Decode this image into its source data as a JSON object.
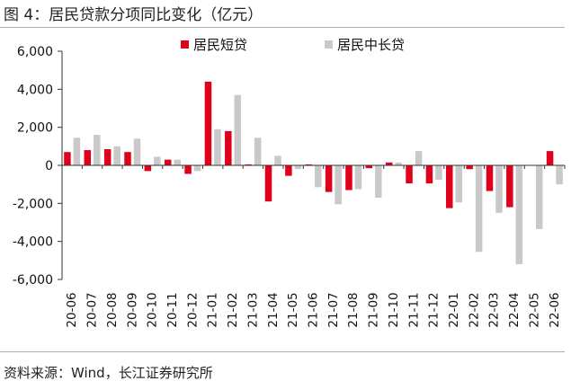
{
  "header": {
    "title": "图 4：居民贷款分项同比变化（亿元）"
  },
  "footer": {
    "source": "资料来源：Wind，长江证券研究所"
  },
  "chart_data": {
    "type": "bar",
    "title": "居民贷款分项同比变化（亿元）",
    "categories": [
      "20-06",
      "20-07",
      "20-08",
      "20-09",
      "20-10",
      "20-11",
      "20-12",
      "21-01",
      "21-02",
      "21-03",
      "21-04",
      "21-05",
      "21-06",
      "21-07",
      "21-08",
      "21-09",
      "21-10",
      "21-11",
      "21-12",
      "22-01",
      "22-02",
      "22-03",
      "22-04",
      "22-05",
      "22-06"
    ],
    "series": [
      {
        "name": "居民短贷",
        "color": "#e0001b",
        "values": [
          700,
          800,
          850,
          700,
          -300,
          300,
          -450,
          4400,
          1800,
          50,
          -1900,
          -550,
          50,
          -1400,
          -1300,
          -150,
          150,
          -950,
          -950,
          -2250,
          -200,
          -1350,
          -2200,
          0,
          750
        ]
      },
      {
        "name": "居民中长贷",
        "color": "#c9c9c9",
        "values": [
          1450,
          1600,
          1000,
          1400,
          450,
          300,
          -300,
          1900,
          3700,
          1450,
          500,
          -200,
          -1150,
          -2050,
          -1250,
          -1700,
          150,
          750,
          -750,
          -1950,
          -4550,
          -2500,
          -5200,
          -3350,
          -1000
        ]
      }
    ],
    "ylim": [
      -6000,
      6000
    ],
    "yticks": [
      -6000,
      -4000,
      -2000,
      0,
      2000,
      4000,
      6000
    ],
    "ytick_labels": [
      "-6,000",
      "-4,000",
      "-2,000",
      "0",
      "2,000",
      "4,000",
      "6,000"
    ],
    "legend_position": "top"
  }
}
